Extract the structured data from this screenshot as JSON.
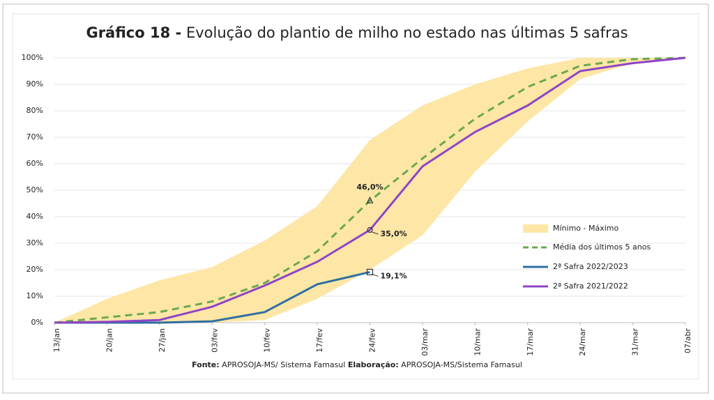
{
  "chart_data": {
    "type": "line",
    "title_prefix": "Gráfico 18 -",
    "title": "Evolução do plantio de milho no estado nas últimas 5 safras",
    "categories": [
      "13/jan",
      "20/jan",
      "27/jan",
      "03/fev",
      "10/fev",
      "17/fev",
      "24/fev",
      "03/mar",
      "10/mar",
      "17/mar",
      "24/mar",
      "31/mar",
      "07/abr"
    ],
    "ylim": [
      0,
      100
    ],
    "yticks": [
      {
        "value": 0,
        "label": "0%"
      },
      {
        "value": 10,
        "label": "10%"
      },
      {
        "value": 20,
        "label": "20%"
      },
      {
        "value": 30,
        "label": "30%"
      },
      {
        "value": 40,
        "label": "40%"
      },
      {
        "value": 50,
        "label": "50%"
      },
      {
        "value": 60,
        "label": "60%"
      },
      {
        "value": 70,
        "label": "70%"
      },
      {
        "value": 80,
        "label": "80%"
      },
      {
        "value": 90,
        "label": "90%"
      },
      {
        "value": 100,
        "label": "100%"
      }
    ],
    "range": {
      "name": "Mínimo - Máximo",
      "color": "#fde6a6",
      "low": [
        0,
        0,
        0,
        0,
        1,
        9,
        20,
        33,
        57,
        76,
        92,
        98,
        100
      ],
      "high": [
        0,
        9,
        16,
        21,
        31,
        44,
        69,
        82,
        90,
        96,
        100,
        100,
        100
      ]
    },
    "series": [
      {
        "name": "Média dos últimos 5 anos",
        "color": "#6aa84f",
        "dashed": true,
        "marker": "triangle",
        "values": [
          0,
          2,
          4,
          8,
          15,
          27,
          46.0,
          62,
          77,
          89,
          97,
          99.5,
          100
        ],
        "value_labels": [
          null,
          null,
          null,
          null,
          null,
          null,
          "46,0%",
          null,
          null,
          null,
          null,
          null,
          null
        ]
      },
      {
        "name": "2ª Safra 2022/2023",
        "color": "#2f6f9f",
        "marker": "square",
        "values": [
          0,
          0,
          0,
          0.5,
          4,
          14.5,
          19.1,
          null,
          null,
          null,
          null,
          null,
          null
        ],
        "value_labels": [
          null,
          null,
          null,
          null,
          null,
          null,
          "19,1%",
          null,
          null,
          null,
          null,
          null,
          null
        ]
      },
      {
        "name": "2ª Safra 2021/2022",
        "color": "#8e44c6",
        "marker": "circle",
        "values": [
          0,
          0.3,
          1,
          6,
          14,
          23,
          35.0,
          59,
          72,
          82,
          95,
          98,
          100
        ],
        "value_labels": [
          null,
          null,
          null,
          null,
          null,
          null,
          "35,0%",
          null,
          null,
          null,
          null,
          null,
          null
        ]
      }
    ],
    "source_label": "Fonte:",
    "source": "APROSOJA-MS/ Sistema Famasul",
    "credit_label": "Elaboração:",
    "credit": "APROSOJA-MS/Sistema Famasul"
  }
}
